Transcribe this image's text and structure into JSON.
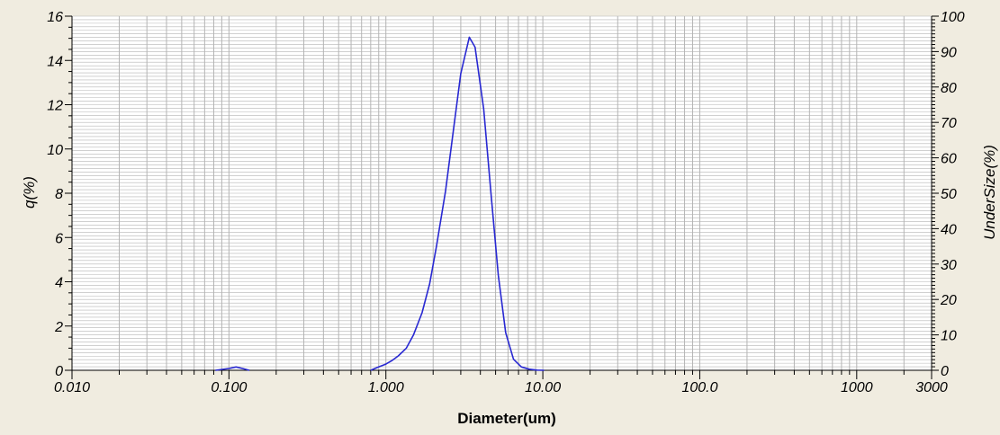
{
  "chart_data": {
    "type": "line",
    "title": "",
    "xlabel": "Diameter(um)",
    "ylabel": "q(%)",
    "y2label": "UnderSize(%)",
    "x_scale": "log",
    "xlim": [
      0.01,
      3000
    ],
    "ylim": [
      0,
      16
    ],
    "y2lim": [
      0,
      100
    ],
    "grid": true,
    "x_tick_labels": [
      {
        "value": 0.01,
        "label": "0.010"
      },
      {
        "value": 0.1,
        "label": "0.100"
      },
      {
        "value": 1,
        "label": "1.000"
      },
      {
        "value": 10,
        "label": "10.00"
      },
      {
        "value": 100,
        "label": "100.0"
      },
      {
        "value": 1000,
        "label": "1000"
      },
      {
        "value": 3000,
        "label": "3000"
      }
    ],
    "y_tick_labels": [
      "0",
      "2",
      "4",
      "6",
      "8",
      "10",
      "12",
      "14",
      "16"
    ],
    "y2_tick_labels": [
      "0",
      "10",
      "20",
      "30",
      "40",
      "50",
      "60",
      "70",
      "80",
      "90",
      "100"
    ],
    "colors": {
      "background": "#f0ece0",
      "plot_area": "#ffffff",
      "grid": "#b4b4b4",
      "series": "#2828d2"
    },
    "series": [
      {
        "name": "",
        "axis": "left",
        "color": "#2828d2",
        "x": [
          0.082,
          0.1,
          0.111,
          0.122,
          0.135
        ],
        "y": [
          0,
          0.08,
          0.15,
          0.08,
          0
        ]
      },
      {
        "name": "",
        "axis": "left",
        "color": "#2828d2",
        "x": [
          0.8,
          0.9,
          1.0,
          1.1,
          1.2,
          1.35,
          1.5,
          1.7,
          1.9,
          2.1,
          2.4,
          2.7,
          3.0,
          3.4,
          3.7,
          4.2,
          4.7,
          5.2,
          5.8,
          6.5,
          7.3,
          8.2,
          9.2,
          10.2
        ],
        "y": [
          0,
          0.15,
          0.28,
          0.45,
          0.65,
          1.0,
          1.6,
          2.6,
          3.9,
          5.6,
          8.1,
          10.9,
          13.4,
          15.05,
          14.6,
          11.8,
          7.8,
          4.3,
          1.7,
          0.5,
          0.15,
          0.05,
          0.01,
          0
        ]
      }
    ]
  }
}
